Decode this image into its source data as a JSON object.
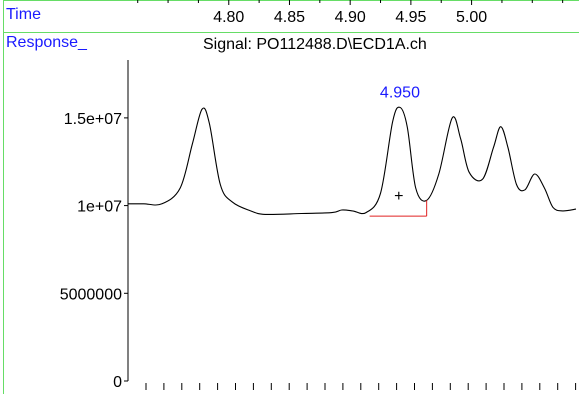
{
  "header": {
    "time_label": "Time",
    "response_label": "Response_",
    "signal_label": "Signal: PO112488.D\\ECD1A.ch"
  },
  "chart_data": {
    "type": "line",
    "title": "Signal: PO112488.D\\ECD1A.ch",
    "xlabel": "Time",
    "ylabel": "Response_",
    "xlim": [
      4.717,
      5.086
    ],
    "ylim": [
      0,
      18300000
    ],
    "x_ticks": [
      4.8,
      4.85,
      4.9,
      4.95,
      5.0
    ],
    "x_tick_labels": [
      "4.80",
      "4.85",
      "4.90",
      "4.95",
      "5.00"
    ],
    "y_ticks": [
      0,
      5000000,
      10000000,
      15000000
    ],
    "y_tick_labels": [
      "0",
      "5000000",
      "1e+07",
      "1.5e+07"
    ],
    "grid": false,
    "series": [
      {
        "values": [
          [
            4.717,
            10100000
          ],
          [
            4.73,
            10100000
          ],
          [
            4.745,
            10100000
          ],
          [
            4.76,
            11000000
          ],
          [
            4.77,
            13500000
          ],
          [
            4.778,
            15500000
          ],
          [
            4.784,
            14700000
          ],
          [
            4.793,
            11200000
          ],
          [
            4.803,
            10200000
          ],
          [
            4.818,
            9700000
          ],
          [
            4.83,
            9500000
          ],
          [
            4.86,
            9550000
          ],
          [
            4.885,
            9600000
          ],
          [
            4.893,
            9750000
          ],
          [
            4.902,
            9700000
          ],
          [
            4.913,
            9600000
          ],
          [
            4.925,
            10700000
          ],
          [
            4.935,
            14800000
          ],
          [
            4.941,
            15600000
          ],
          [
            4.947,
            14500000
          ],
          [
            4.954,
            11000000
          ],
          [
            4.963,
            10300000
          ],
          [
            4.973,
            11800000
          ],
          [
            4.984,
            15000000
          ],
          [
            4.991,
            13800000
          ],
          [
            4.998,
            11900000
          ],
          [
            5.009,
            11500000
          ],
          [
            5.018,
            13300000
          ],
          [
            5.024,
            14500000
          ],
          [
            5.03,
            13300000
          ],
          [
            5.037,
            11200000
          ],
          [
            5.044,
            10900000
          ],
          [
            5.052,
            11800000
          ],
          [
            5.06,
            11000000
          ],
          [
            5.067,
            9900000
          ],
          [
            5.075,
            9700000
          ],
          [
            5.086,
            9800000
          ]
        ]
      }
    ],
    "peak_annotation": {
      "label": "4.950",
      "x": 4.941,
      "y": 15600000
    },
    "integration_baseline": {
      "color": "#e02020",
      "start": [
        4.916,
        9400000
      ],
      "end": [
        4.963,
        9400000
      ],
      "end_top": 10300000
    },
    "marker": {
      "symbol": "+",
      "x": 4.94,
      "y": 10600000
    },
    "colors": {
      "trace": "#000000",
      "labels": "#1a1aff",
      "frame": "#66dd66",
      "baseline": "#e02020"
    }
  }
}
